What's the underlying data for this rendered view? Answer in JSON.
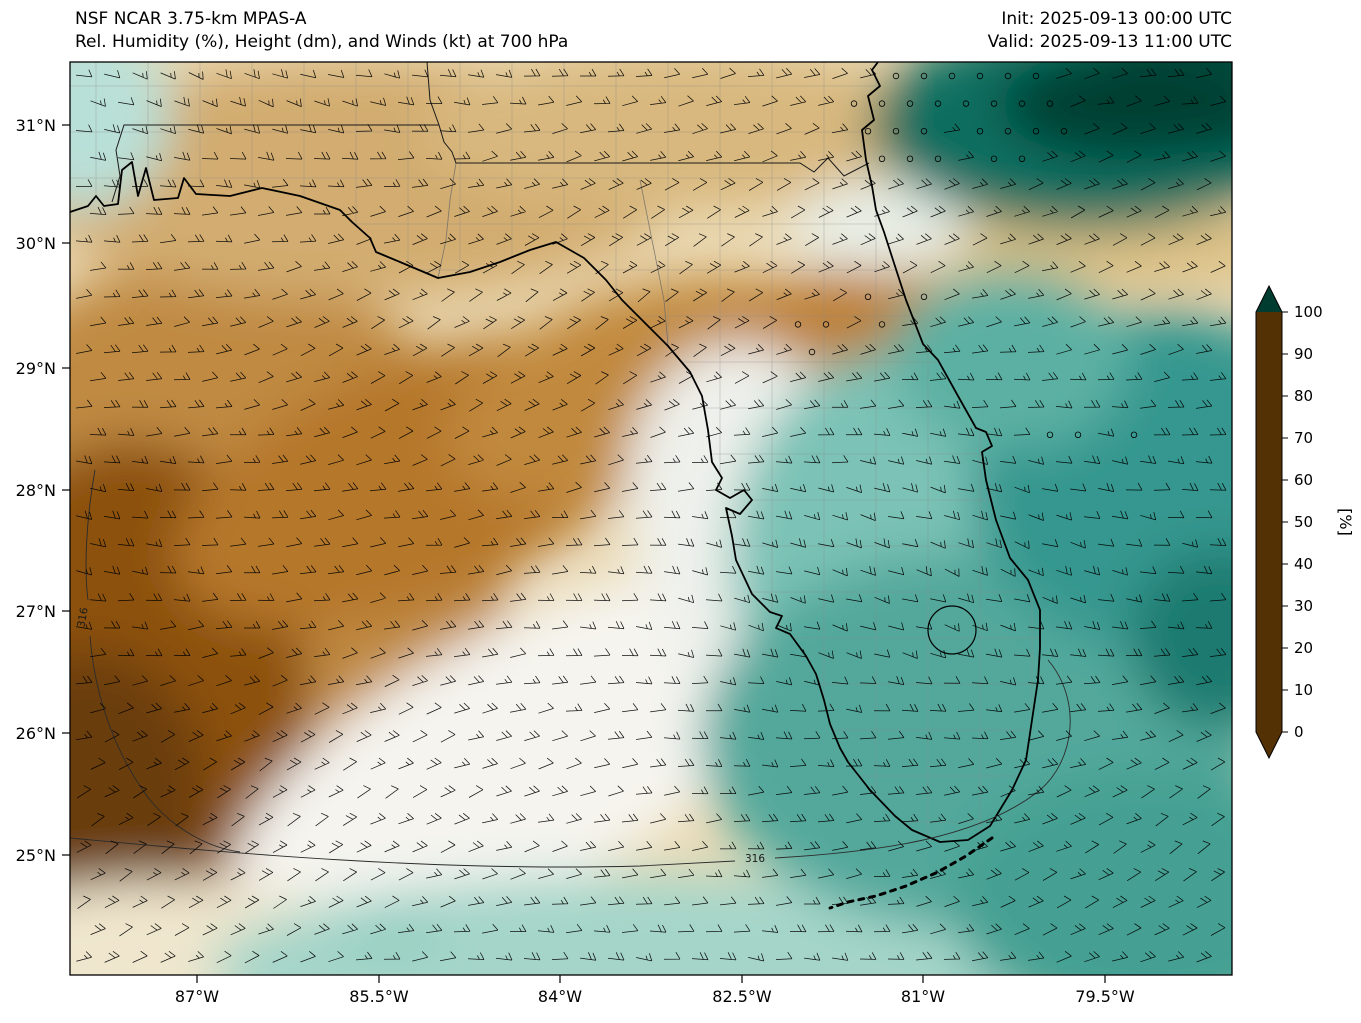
{
  "header": {
    "model": "NSF NCAR 3.75-km MPAS-A",
    "product": "Rel. Humidity (%), Height (dm), and Winds (kt) at 700 hPa",
    "init": "Init: 2025-09-13 00:00 UTC",
    "valid": "Valid: 2025-09-13 11:00 UTC"
  },
  "chart_data": {
    "type": "heatmap",
    "title": "NSF NCAR 3.75-km MPAS-A — Rel. Humidity (%), Height (dm), and Winds (kt) at 700 hPa",
    "region": "Florida, eastern Gulf of Mexico and adjacent Atlantic",
    "init_time": "2025-09-13 00:00 UTC",
    "valid_time": "2025-09-13 11:00 UTC",
    "x_axis": {
      "ticks": [
        "87°W",
        "85.5°W",
        "84°W",
        "82.5°W",
        "81°W",
        "79.5°W"
      ]
    },
    "y_axis": {
      "ticks": [
        "31°N",
        "30°N",
        "29°N",
        "28°N",
        "27°N",
        "26°N",
        "25°N"
      ]
    },
    "colorbar": {
      "label": "[%]",
      "units": "%",
      "tick_values": [
        0,
        10,
        20,
        30,
        40,
        50,
        60,
        70,
        80,
        90,
        100
      ],
      "extend": "both",
      "stops": [
        {
          "value": 0,
          "color": "#543005"
        },
        {
          "value": 10,
          "color": "#8c510a"
        },
        {
          "value": 20,
          "color": "#bf812d"
        },
        {
          "value": 30,
          "color": "#dfc27d"
        },
        {
          "value": 40,
          "color": "#f6e8c3"
        },
        {
          "value": 50,
          "color": "#f5f5f5"
        },
        {
          "value": 60,
          "color": "#c7eae5"
        },
        {
          "value": 70,
          "color": "#80cdc1"
        },
        {
          "value": 80,
          "color": "#35978f"
        },
        {
          "value": 90,
          "color": "#01665e"
        },
        {
          "value": 100,
          "color": "#003c30"
        }
      ]
    },
    "contours": {
      "field": "Geopotential height (dm)",
      "label_text": "316",
      "values": [
        316
      ]
    },
    "winds": {
      "units": "kt",
      "style": "barbs",
      "typical_speed_kt": [
        5,
        20
      ],
      "calm_indicator": "open circles over northeast quadrant and north-central Florida"
    },
    "field_summary": {
      "dry": "RH 10-40% (browns) over western Gulf of Mexico, Florida panhandle and north-central Florida",
      "moist": "RH 70-100% (teals) over the Atlantic east of Florida, South Florida and Florida Straits"
    }
  }
}
